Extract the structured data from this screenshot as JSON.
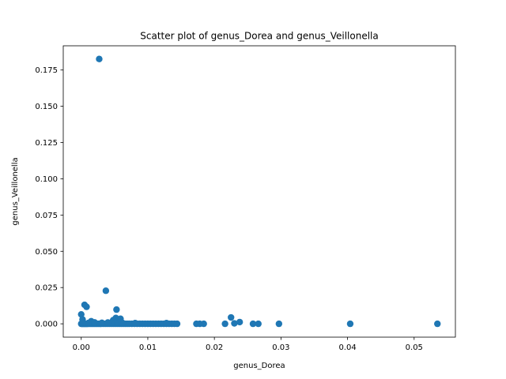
{
  "chart_data": {
    "type": "scatter",
    "title": "Scatter plot of genus_Dorea and genus_Veillonella",
    "xlabel": "genus_Dorea",
    "ylabel": "genus_Veillonella",
    "xlim": [
      -0.0027,
      0.0562
    ],
    "ylim": [
      -0.0092,
      0.1917
    ],
    "xticks": [
      0.0,
      0.01,
      0.02,
      0.03,
      0.04,
      0.05
    ],
    "xtick_labels": [
      "0.00",
      "0.01",
      "0.02",
      "0.03",
      "0.04",
      "0.05"
    ],
    "yticks": [
      0.0,
      0.025,
      0.05,
      0.075,
      0.1,
      0.125,
      0.15,
      0.175
    ],
    "ytick_labels": [
      "0.000",
      "0.025",
      "0.050",
      "0.075",
      "0.100",
      "0.125",
      "0.150",
      "0.175"
    ],
    "grid": false,
    "color": "#1f77b4",
    "points": [
      [
        0.0027,
        0.1826
      ],
      [
        0.0037,
        0.0228
      ],
      [
        0.0005,
        0.0131
      ],
      [
        0.0008,
        0.0117
      ],
      [
        0.0053,
        0.0098
      ],
      [
        0.0,
        0.0065
      ],
      [
        0.0225,
        0.0044
      ],
      [
        0.0052,
        0.004
      ],
      [
        0.0059,
        0.0035
      ],
      [
        0.0002,
        0.003
      ],
      [
        0.0048,
        0.0025
      ],
      [
        0.0015,
        0.0018
      ],
      [
        0.0238,
        0.0012
      ],
      [
        0.023,
        0.0003
      ],
      [
        0.0,
        0.0
      ],
      [
        0.0001,
        0.0
      ],
      [
        0.0002,
        0.0
      ],
      [
        0.0003,
        0.0
      ],
      [
        0.0004,
        0.0
      ],
      [
        0.0005,
        0.0
      ],
      [
        0.0006,
        0.0
      ],
      [
        0.0007,
        0.0
      ],
      [
        0.0008,
        0.0
      ],
      [
        0.0009,
        0.0
      ],
      [
        0.001,
        0.0
      ],
      [
        0.0012,
        0.0
      ],
      [
        0.0014,
        0.0
      ],
      [
        0.0016,
        0.0
      ],
      [
        0.0018,
        0.0
      ],
      [
        0.002,
        0.0
      ],
      [
        0.0022,
        0.0
      ],
      [
        0.0024,
        0.0
      ],
      [
        0.0026,
        0.0
      ],
      [
        0.0028,
        0.0
      ],
      [
        0.003,
        0.0
      ],
      [
        0.0033,
        0.0
      ],
      [
        0.0036,
        0.0
      ],
      [
        0.0039,
        0.0
      ],
      [
        0.0042,
        0.0
      ],
      [
        0.0045,
        0.0
      ],
      [
        0.0048,
        0.0
      ],
      [
        0.0051,
        0.0
      ],
      [
        0.0054,
        0.0
      ],
      [
        0.0057,
        0.0
      ],
      [
        0.006,
        0.0
      ],
      [
        0.0063,
        0.0
      ],
      [
        0.0066,
        0.0
      ],
      [
        0.0069,
        0.0
      ],
      [
        0.0072,
        0.0
      ],
      [
        0.0076,
        0.0
      ],
      [
        0.008,
        0.0
      ],
      [
        0.0084,
        0.0
      ],
      [
        0.0088,
        0.0
      ],
      [
        0.0092,
        0.0
      ],
      [
        0.0096,
        0.0
      ],
      [
        0.01,
        0.0
      ],
      [
        0.0104,
        0.0
      ],
      [
        0.0108,
        0.0
      ],
      [
        0.0112,
        0.0
      ],
      [
        0.0116,
        0.0
      ],
      [
        0.012,
        0.0
      ],
      [
        0.0124,
        0.0
      ],
      [
        0.0128,
        0.0
      ],
      [
        0.0132,
        0.0
      ],
      [
        0.0136,
        0.0
      ],
      [
        0.014,
        0.0
      ],
      [
        0.0144,
        0.0
      ],
      [
        0.0003,
        0.0008
      ],
      [
        0.0011,
        0.0006
      ],
      [
        0.002,
        0.001
      ],
      [
        0.0031,
        0.0007
      ],
      [
        0.004,
        0.0009
      ],
      [
        0.0062,
        0.0006
      ],
      [
        0.0081,
        0.0005
      ],
      [
        0.0128,
        0.0005
      ],
      [
        0.0173,
        0.0
      ],
      [
        0.0178,
        0.0
      ],
      [
        0.0184,
        0.0
      ],
      [
        0.0216,
        0.0
      ],
      [
        0.0258,
        0.0
      ],
      [
        0.0266,
        0.0
      ],
      [
        0.0297,
        0.0
      ],
      [
        0.0404,
        0.0
      ],
      [
        0.0535,
        0.0
      ]
    ]
  }
}
